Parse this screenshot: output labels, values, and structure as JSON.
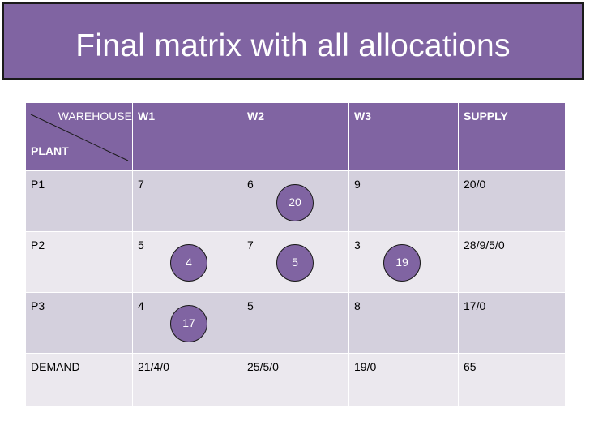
{
  "title": "Final matrix with all allocations",
  "corner": {
    "warehouse": "WAREHOUSE",
    "plant": "PLANT"
  },
  "headers": [
    "W1",
    "W2",
    "W3",
    "SUPPLY"
  ],
  "rows": [
    {
      "label": "P1",
      "values": [
        "7",
        "6",
        "9",
        "20/0"
      ]
    },
    {
      "label": "P2",
      "values": [
        "5",
        "7",
        "3",
        "28/9/5/0"
      ]
    },
    {
      "label": "P3",
      "values": [
        "4",
        "5",
        "8",
        "17/0"
      ]
    },
    {
      "label": "DEMAND",
      "values": [
        "21/4/0",
        "25/5/0",
        "19/0",
        "65"
      ]
    }
  ],
  "allocations": {
    "p1_w2": "20",
    "p2_w1": "4",
    "p2_w2": "5",
    "p2_w3": "19",
    "p3_w1": "17"
  },
  "colors": {
    "header": "#8064a2",
    "row_dark": "#d4d0dd",
    "row_light": "#ebe8ee"
  }
}
